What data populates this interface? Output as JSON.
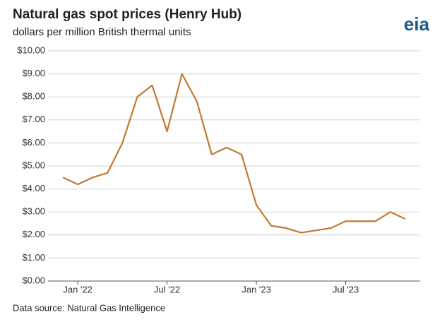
{
  "chart_data": {
    "type": "line",
    "title": "Natural gas spot prices (Henry Hub)",
    "subtitle": "dollars per million British thermal units",
    "source": "Data source: Natural Gas Intelligence",
    "logo": "eia",
    "x": [
      "2021-12",
      "2022-01",
      "2022-02",
      "2022-03",
      "2022-04",
      "2022-05",
      "2022-06",
      "2022-07",
      "2022-08",
      "2022-09",
      "2022-10",
      "2022-11",
      "2022-12",
      "2023-01",
      "2023-02",
      "2023-03",
      "2023-04",
      "2023-05",
      "2023-06",
      "2023-07",
      "2023-08",
      "2023-09",
      "2023-10",
      "2023-11"
    ],
    "series": [
      {
        "name": "Henry Hub",
        "color": "#c17a30",
        "values": [
          4.5,
          4.2,
          4.5,
          4.7,
          6.0,
          8.0,
          8.5,
          6.5,
          9.0,
          7.8,
          5.5,
          5.8,
          5.5,
          3.3,
          2.4,
          2.3,
          2.1,
          2.2,
          2.3,
          2.6,
          2.6,
          2.6,
          3.0,
          2.7
        ]
      }
    ],
    "xlim": [
      "2021-11",
      "2023-12"
    ],
    "xticks": [
      {
        "value": "2022-01",
        "label": "Jan '22"
      },
      {
        "value": "2022-07",
        "label": "Jul '22"
      },
      {
        "value": "2023-01",
        "label": "Jan '23"
      },
      {
        "value": "2023-07",
        "label": "Jul '23"
      }
    ],
    "ylim": [
      0,
      10
    ],
    "yticks": [
      {
        "value": 0,
        "label": "$0.00"
      },
      {
        "value": 1,
        "label": "$1.00"
      },
      {
        "value": 2,
        "label": "$2.00"
      },
      {
        "value": 3,
        "label": "$3.00"
      },
      {
        "value": 4,
        "label": "$4.00"
      },
      {
        "value": 5,
        "label": "$5.00"
      },
      {
        "value": 6,
        "label": "$6.00"
      },
      {
        "value": 7,
        "label": "$7.00"
      },
      {
        "value": 8,
        "label": "$8.00"
      },
      {
        "value": 9,
        "label": "$9.00"
      },
      {
        "value": 10,
        "label": "$10.00"
      }
    ],
    "grid": true
  }
}
